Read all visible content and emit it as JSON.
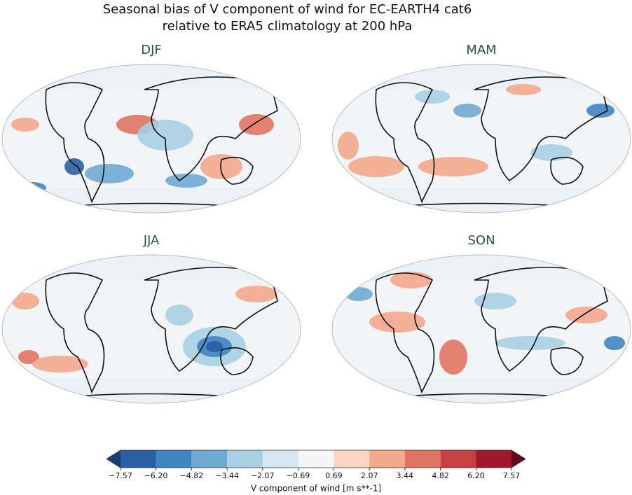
{
  "figure": {
    "title": [
      "Seasonal bias of V component of wind for EC-EARTH4 cat6",
      "relative to ERA5 climatology at 200 hPa"
    ],
    "panels": [
      {
        "title": "DJF"
      },
      {
        "title": "MAM"
      },
      {
        "title": "JJA"
      },
      {
        "title": "SON"
      }
    ],
    "colorbar": {
      "label": "V component of wind [m s**-1]",
      "ticks": [
        {
          "value": -7.57,
          "label": "−7.57"
        },
        {
          "value": -6.2,
          "label": "−6.20"
        },
        {
          "value": -4.82,
          "label": "−4.82"
        },
        {
          "value": -3.44,
          "label": "−3.44"
        },
        {
          "value": -2.07,
          "label": "−2.07"
        },
        {
          "value": -0.69,
          "label": "−0.69"
        },
        {
          "value": 0.69,
          "label": "0.69"
        },
        {
          "value": 2.07,
          "label": "2.07"
        },
        {
          "value": 3.44,
          "label": "3.44"
        },
        {
          "value": 4.82,
          "label": "4.82"
        },
        {
          "value": 6.2,
          "label": "6.20"
        },
        {
          "value": 7.57,
          "label": "7.57"
        }
      ],
      "colors": [
        "#2a5fa3",
        "#3f86c1",
        "#70aad3",
        "#a8cfe4",
        "#d6e7f1",
        "#f5f5f5",
        "#fad5c3",
        "#f3a98c",
        "#e07461",
        "#c94040",
        "#a3152d"
      ],
      "under_color": "#1a3d76",
      "over_color": "#67001f"
    }
  }
}
